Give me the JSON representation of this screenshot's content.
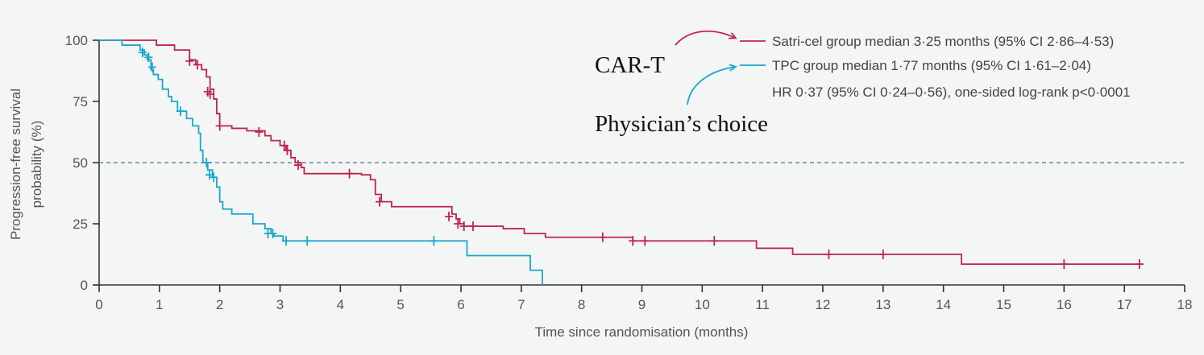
{
  "chart_data": {
    "type": "line",
    "chart_kind": "kaplan-meier step plot",
    "xlabel": "Time since randomisation (months)",
    "ylabel_lines": [
      "Progression-free survival",
      "probability (%)"
    ],
    "xlim": [
      0,
      18
    ],
    "ylim": [
      0,
      100
    ],
    "xticks": [
      "0",
      "1",
      "2",
      "3",
      "4",
      "5",
      "6",
      "7",
      "8",
      "9",
      "10",
      "11",
      "12",
      "13",
      "14",
      "15",
      "16",
      "17",
      "18"
    ],
    "yticks": [
      "0",
      "25",
      "50",
      "75",
      "100"
    ],
    "reference_line": {
      "y": 50,
      "style": "dashed",
      "color": "#6b8aa3"
    },
    "grid": false,
    "legend_position": "top-right",
    "series": [
      {
        "name": "Satri-cel group median 3·25 months (95% CI 2·86–4·53)",
        "color": "#c0254c",
        "steps": [
          [
            0,
            100
          ],
          [
            0.95,
            98
          ],
          [
            1.25,
            96
          ],
          [
            1.5,
            92
          ],
          [
            1.6,
            90
          ],
          [
            1.7,
            88
          ],
          [
            1.78,
            85
          ],
          [
            1.84,
            80
          ],
          [
            1.9,
            76
          ],
          [
            1.95,
            70
          ],
          [
            2.0,
            65
          ],
          [
            2.2,
            64
          ],
          [
            2.45,
            63
          ],
          [
            2.75,
            61
          ],
          [
            2.85,
            59
          ],
          [
            3.0,
            57
          ],
          [
            3.1,
            55
          ],
          [
            3.18,
            52
          ],
          [
            3.25,
            50
          ],
          [
            3.35,
            48
          ],
          [
            3.4,
            45.5
          ],
          [
            4.35,
            45
          ],
          [
            4.5,
            43
          ],
          [
            4.58,
            37
          ],
          [
            4.68,
            34
          ],
          [
            4.85,
            32
          ],
          [
            5.85,
            29
          ],
          [
            5.92,
            27
          ],
          [
            5.98,
            25
          ],
          [
            6.05,
            24
          ],
          [
            6.7,
            23
          ],
          [
            7.05,
            21
          ],
          [
            7.4,
            19.5
          ],
          [
            8.85,
            18
          ],
          [
            10.9,
            15
          ],
          [
            11.5,
            12.5
          ],
          [
            14.3,
            8.5
          ],
          [
            17.3,
            8.5
          ]
        ],
        "censored": [
          [
            1.5,
            91.5
          ],
          [
            1.63,
            90
          ],
          [
            1.8,
            79
          ],
          [
            1.84,
            78
          ],
          [
            2.0,
            65
          ],
          [
            2.65,
            62.5
          ],
          [
            3.07,
            57
          ],
          [
            3.12,
            55
          ],
          [
            3.3,
            49
          ],
          [
            4.15,
            45.5
          ],
          [
            4.65,
            34
          ],
          [
            5.8,
            28
          ],
          [
            5.95,
            25
          ],
          [
            6.05,
            24
          ],
          [
            6.2,
            24
          ],
          [
            8.35,
            19.5
          ],
          [
            8.85,
            18
          ],
          [
            9.05,
            18
          ],
          [
            10.2,
            18
          ],
          [
            12.1,
            12.5
          ],
          [
            13.0,
            12.5
          ],
          [
            16.0,
            8.5
          ],
          [
            17.25,
            8.5
          ]
        ]
      },
      {
        "name": "TPC group median 1·77 months (95% CI 1·61–2·04)",
        "color": "#1aa7d0",
        "steps": [
          [
            0,
            100
          ],
          [
            0.38,
            98
          ],
          [
            0.68,
            96
          ],
          [
            0.75,
            94
          ],
          [
            0.8,
            92
          ],
          [
            0.86,
            88
          ],
          [
            0.9,
            86
          ],
          [
            0.98,
            84
          ],
          [
            1.05,
            80
          ],
          [
            1.15,
            77
          ],
          [
            1.2,
            75
          ],
          [
            1.3,
            71
          ],
          [
            1.45,
            68
          ],
          [
            1.55,
            65
          ],
          [
            1.65,
            62
          ],
          [
            1.68,
            55
          ],
          [
            1.72,
            50
          ],
          [
            1.8,
            47
          ],
          [
            1.88,
            44
          ],
          [
            1.95,
            40
          ],
          [
            2.0,
            34
          ],
          [
            2.05,
            31
          ],
          [
            2.2,
            29
          ],
          [
            2.55,
            25
          ],
          [
            2.75,
            23
          ],
          [
            2.85,
            21
          ],
          [
            2.9,
            20
          ],
          [
            3.05,
            18
          ],
          [
            6.1,
            12
          ],
          [
            7.15,
            6
          ],
          [
            7.35,
            0
          ]
        ],
        "censored": [
          [
            0.72,
            95
          ],
          [
            0.82,
            93
          ],
          [
            0.88,
            89
          ],
          [
            1.35,
            71
          ],
          [
            1.78,
            50
          ],
          [
            1.83,
            45
          ],
          [
            1.9,
            44
          ],
          [
            2.8,
            21
          ],
          [
            2.88,
            21
          ],
          [
            3.1,
            18
          ],
          [
            3.45,
            18
          ],
          [
            5.55,
            18
          ]
        ]
      }
    ],
    "legend_extra": "HR 0·37 (95% CI 0·24–0·56), one-sided log-rank p<0·0001",
    "annotations": [
      "CAR-T",
      "Physician’s choice"
    ]
  }
}
